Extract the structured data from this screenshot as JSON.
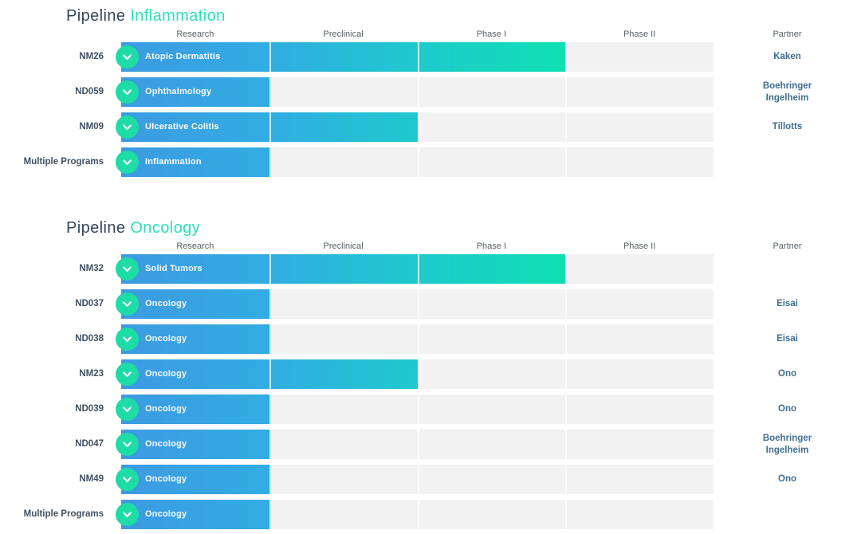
{
  "colors": {
    "title_dark": "#33475b",
    "accent_teal": "#2ce0bd",
    "bar_gradient_start": "#3d9ae2",
    "bar_gradient_mid": "#1ec9cd",
    "bar_gradient_end": "#0fe0b2",
    "chevron_circle_green": "#1edca6",
    "track_gray": "#f2f2f3",
    "header_text": "#596066",
    "code_text": "#3f5164",
    "partner_text": "#3f6e90"
  },
  "sections": [
    {
      "title_prefix": "Pipeline",
      "title_accent": "Inflammation",
      "columns": [
        "Research",
        "Preclinical",
        "Phase I",
        "Phase II"
      ],
      "partner_header": "Partner",
      "rows": [
        {
          "code": "NM26",
          "label": "Atopic Dermatitis",
          "phases_spanned": 3,
          "partner": "Kaken"
        },
        {
          "code": "ND059",
          "label": "Ophthalmology",
          "phases_spanned": 1,
          "partner": "Boehringer Ingelheim"
        },
        {
          "code": "NM09",
          "label": "Ulcerative Colitis",
          "phases_spanned": 2,
          "partner": "Tillotts"
        },
        {
          "code": "Multiple Programs",
          "label": "Inflammation",
          "phases_spanned": 1,
          "partner": ""
        }
      ]
    },
    {
      "title_prefix": "Pipeline",
      "title_accent": "Oncology",
      "columns": [
        "Research",
        "Preclinical",
        "Phase I",
        "Phase II"
      ],
      "partner_header": "Partner",
      "rows": [
        {
          "code": "NM32",
          "label": "Solid Tumors",
          "phases_spanned": 3,
          "partner": ""
        },
        {
          "code": "ND037",
          "label": "Oncology",
          "phases_spanned": 1,
          "partner": "Eisai"
        },
        {
          "code": "ND038",
          "label": "Oncology",
          "phases_spanned": 1,
          "partner": "Eisai"
        },
        {
          "code": "NM23",
          "label": "Oncology",
          "phases_spanned": 2,
          "partner": "Ono"
        },
        {
          "code": "ND039",
          "label": "Oncology",
          "phases_spanned": 1,
          "partner": "Ono"
        },
        {
          "code": "ND047",
          "label": "Oncology",
          "phases_spanned": 1,
          "partner": "Boehringer Ingelheim"
        },
        {
          "code": "NM49",
          "label": "Oncology",
          "phases_spanned": 1,
          "partner": "Ono"
        },
        {
          "code": "Multiple Programs",
          "label": "Oncology",
          "phases_spanned": 1,
          "partner": ""
        }
      ]
    }
  ],
  "chart_data": [
    {
      "type": "bar",
      "orientation": "horizontal",
      "title": "Pipeline Inflammation",
      "phases": [
        "Research",
        "Preclinical",
        "Phase I",
        "Phase II"
      ],
      "categories": [
        "NM26 Atopic Dermatitis",
        "ND059 Ophthalmology",
        "NM09 Ulcerative Colitis",
        "Multiple Programs Inflammation"
      ],
      "values": [
        3,
        1,
        2,
        1
      ],
      "value_meaning": "phase columns spanned out of 4 (1=Research, 2=Preclinical, 3=Phase I, 4=Phase II)",
      "partners": [
        "Kaken",
        "Boehringer Ingelheim",
        "Tillotts",
        ""
      ],
      "xlim": [
        0,
        4
      ],
      "grid": false,
      "legend": false
    },
    {
      "type": "bar",
      "orientation": "horizontal",
      "title": "Pipeline Oncology",
      "phases": [
        "Research",
        "Preclinical",
        "Phase I",
        "Phase II"
      ],
      "categories": [
        "NM32 Solid Tumors",
        "ND037 Oncology",
        "ND038 Oncology",
        "NM23 Oncology",
        "ND039 Oncology",
        "ND047 Oncology",
        "NM49 Oncology",
        "Multiple Programs Oncology"
      ],
      "values": [
        3,
        1,
        1,
        2,
        1,
        1,
        1,
        1
      ],
      "value_meaning": "phase columns spanned out of 4 (1=Research, 2=Preclinical, 3=Phase I, 4=Phase II)",
      "partners": [
        "",
        "Eisai",
        "Eisai",
        "Ono",
        "Ono",
        "Boehringer Ingelheim",
        "Ono",
        ""
      ],
      "xlim": [
        0,
        4
      ],
      "grid": false,
      "legend": false
    }
  ]
}
